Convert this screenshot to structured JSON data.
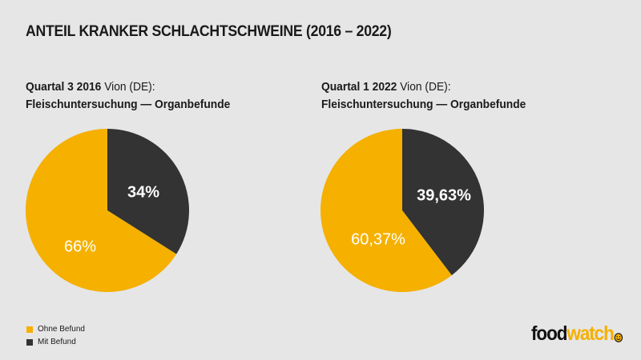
{
  "title": "ANTEIL KRANKER SCHLACHTSCHWEINE (2016 – 2022)",
  "colors": {
    "ohne": "#f5b000",
    "mit": "#333333",
    "background": "#e6e6e6"
  },
  "legend": [
    {
      "label": "Ohne Befund",
      "color": "#f5b000"
    },
    {
      "label": "Mit Befund",
      "color": "#333333"
    }
  ],
  "logo": {
    "part1": "food",
    "part2": "watch",
    "icon": "smile-icon"
  },
  "chart_data": [
    {
      "type": "pie",
      "title_bold": "Quartal 3 2016",
      "title_normal": " Vion (DE):",
      "subtitle": "Fleischuntersuchung — Organbefunde",
      "slices": [
        {
          "name": "Ohne Befund",
          "value": 66,
          "label": "66%"
        },
        {
          "name": "Mit Befund",
          "value": 34,
          "label": "34%"
        }
      ]
    },
    {
      "type": "pie",
      "title_bold": "Quartal 1 2022",
      "title_normal": " Vion (DE):",
      "subtitle": "Fleischuntersuchung — Organbefunde",
      "slices": [
        {
          "name": "Ohne Befund",
          "value": 60.37,
          "label": "60,37%"
        },
        {
          "name": "Mit Befund",
          "value": 39.63,
          "label": "39,63%"
        }
      ]
    }
  ]
}
